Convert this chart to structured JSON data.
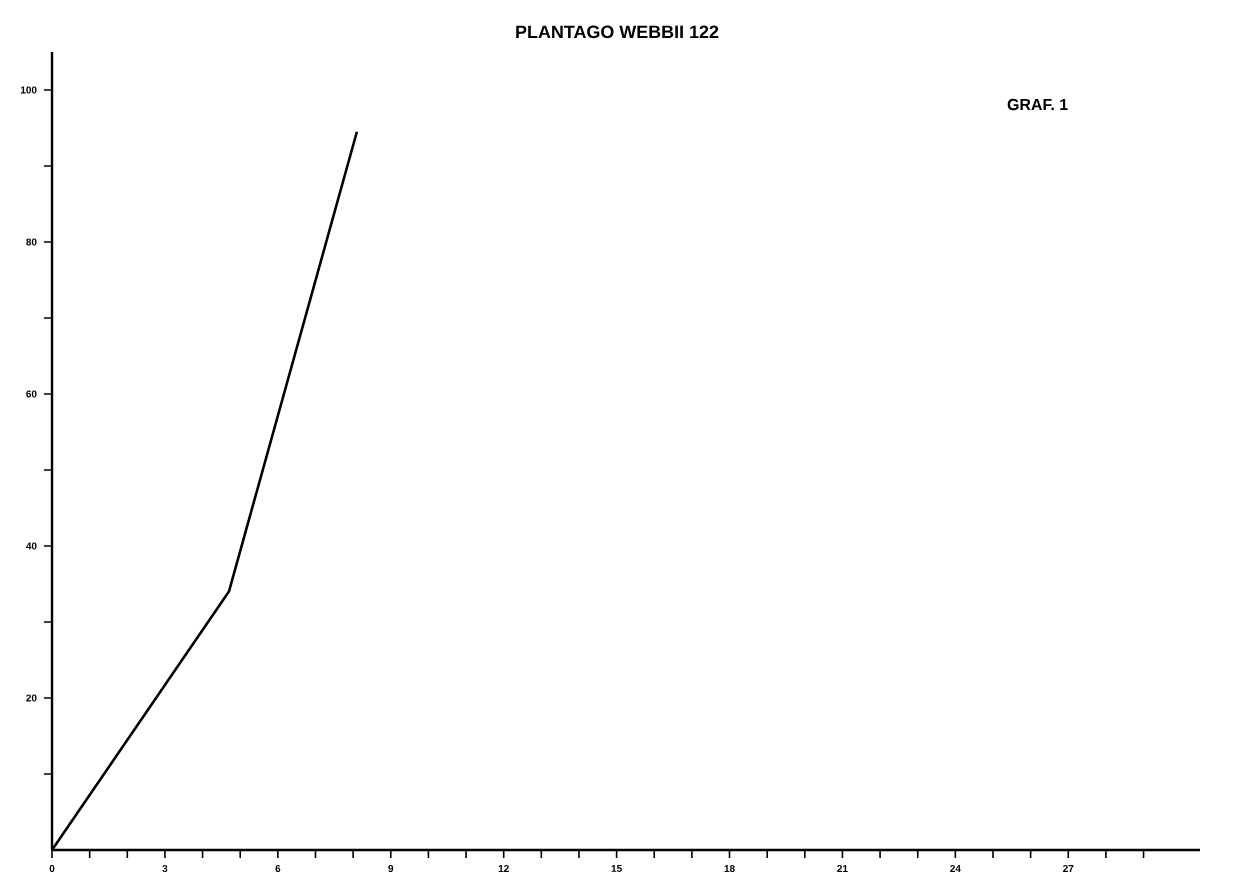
{
  "chart_data": {
    "type": "line",
    "title": "PLANTAGO WEBBII 122",
    "annotations": [
      "GRAF. 1"
    ],
    "x": [
      0,
      4.7,
      8.1
    ],
    "series": [
      {
        "color": "#000000",
        "values": [
          0,
          34,
          94.5
        ]
      }
    ],
    "xlim": [
      0,
      30.5
    ],
    "ylim": [
      0,
      105
    ],
    "xticks": [
      0,
      {
        "value": 1,
        "label": null
      },
      {
        "value": 2,
        "label": null
      },
      3,
      {
        "value": 4,
        "label": null
      },
      {
        "value": 5,
        "label": null
      },
      6,
      {
        "value": 7,
        "label": null
      },
      {
        "value": 8,
        "label": null
      },
      9,
      {
        "value": 10,
        "label": null
      },
      {
        "value": 11,
        "label": null
      },
      12,
      {
        "value": 13,
        "label": null
      },
      {
        "value": 14,
        "label": null
      },
      15,
      {
        "value": 16,
        "label": null
      },
      {
        "value": 17,
        "label": null
      },
      18,
      {
        "value": 19,
        "label": null
      },
      {
        "value": 20,
        "label": null
      },
      21,
      {
        "value": 22,
        "label": null
      },
      {
        "value": 23,
        "label": null
      },
      24,
      {
        "value": 25,
        "label": null
      },
      {
        "value": 26,
        "label": null
      },
      27,
      {
        "value": 28,
        "label": null
      },
      {
        "value": 29,
        "label": null
      }
    ],
    "yticks": [
      {
        "value": 10,
        "label": null
      },
      20,
      {
        "value": 30,
        "label": null
      },
      40,
      {
        "value": 50,
        "label": null
      },
      60,
      {
        "value": 70,
        "label": null
      },
      80,
      {
        "value": 90,
        "label": null
      },
      100
    ],
    "grid": false,
    "marker": "none",
    "line_style": "solid"
  }
}
